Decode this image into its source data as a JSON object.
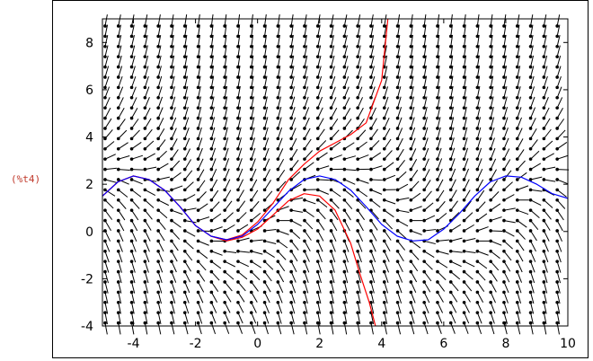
{
  "output_label": "(%t4)",
  "chart_data": {
    "type": "line",
    "title": "",
    "xlabel": "",
    "ylabel": "",
    "xlim": [
      -5,
      10
    ],
    "ylim": [
      -4,
      9
    ],
    "x_ticks": [
      -4,
      -2,
      0,
      2,
      4,
      6,
      8,
      10
    ],
    "y_ticks": [
      -4,
      -2,
      0,
      2,
      4,
      6,
      8
    ],
    "x_tick_labels": [
      "-4",
      "-2",
      "0",
      "2",
      "4",
      "6",
      "8",
      "10"
    ],
    "y_tick_labels": [
      "-4",
      "-2",
      "0",
      "2",
      "4",
      "6",
      "8"
    ],
    "grid": false,
    "direction_field": {
      "x_range": [
        -5,
        10
      ],
      "y_range": [
        -4,
        9
      ],
      "nx": 35,
      "ny": 30
    },
    "series": [
      {
        "color": "#ff0000",
        "x": [
          -5,
          -4.5,
          -4,
          -3.5,
          -3,
          -2.5,
          -2,
          -1.5,
          -1,
          -0.5,
          0,
          0.5,
          1,
          1.5,
          2,
          2.5,
          3,
          3.5,
          4,
          4.2
        ],
        "y": [
          1.5,
          2.1,
          2.35,
          2.2,
          1.75,
          1.05,
          0.25,
          -0.2,
          -0.35,
          -0.15,
          0.4,
          1.2,
          2.2,
          2.85,
          3.4,
          3.75,
          4.1,
          4.6,
          6.4,
          9.0
        ]
      },
      {
        "color": "#ff0000",
        "x": [
          -5,
          -4.5,
          -4,
          -3.5,
          -3,
          -2.5,
          -2,
          -1.5,
          -1,
          -0.5,
          0,
          0.5,
          1,
          1.5,
          2,
          2.5,
          3,
          3.3,
          3.6,
          3.8
        ],
        "y": [
          1.5,
          2.1,
          2.35,
          2.2,
          1.75,
          1.05,
          0.25,
          -0.2,
          -0.4,
          -0.25,
          0.1,
          0.7,
          1.3,
          1.6,
          1.5,
          0.9,
          -0.5,
          -1.8,
          -3.0,
          -4.0
        ]
      },
      {
        "color": "#0000ff",
        "x": [
          -5,
          -4.5,
          -4,
          -3.5,
          -3,
          -2.5,
          -2,
          -1.5,
          -1,
          -0.5,
          0,
          0.5,
          1,
          1.5,
          2,
          2.5,
          3,
          3.5,
          4,
          4.5,
          5,
          5.5,
          6,
          6.5,
          7,
          7.5,
          8,
          8.5,
          9,
          9.5,
          10
        ],
        "y": [
          1.5,
          2.1,
          2.35,
          2.2,
          1.75,
          1.05,
          0.25,
          -0.2,
          -0.35,
          -0.2,
          0.3,
          1.0,
          1.7,
          2.2,
          2.35,
          2.2,
          1.75,
          1.05,
          0.3,
          -0.2,
          -0.4,
          -0.35,
          0.1,
          0.75,
          1.5,
          2.1,
          2.35,
          2.3,
          2.0,
          1.6,
          1.4
        ]
      }
    ]
  }
}
